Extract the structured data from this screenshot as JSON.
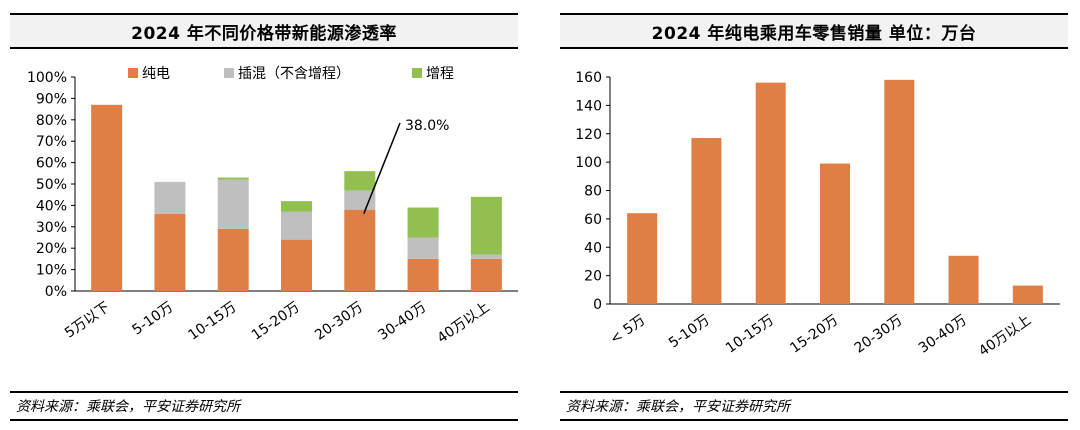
{
  "left": {
    "title": "2024 年不同价格带新能源渗透率",
    "source": "资料来源：乘联会，平安证券研究所",
    "chart_data": {
      "type": "bar",
      "stacked": true,
      "categories": [
        "5万以下",
        "5-10万",
        "10-15万",
        "15-20万",
        "20-30万",
        "30-40万",
        "40万以上"
      ],
      "series": [
        {
          "name": "纯电",
          "color": "#E07F45",
          "values": [
            87,
            36,
            29,
            24,
            38,
            15,
            15
          ]
        },
        {
          "name": "插混（不含增程）",
          "color": "#BFBFBF",
          "values": [
            0,
            15,
            23,
            13,
            9,
            10,
            2
          ]
        },
        {
          "name": "增程",
          "color": "#92C050",
          "values": [
            0,
            0,
            1,
            5,
            9,
            14,
            27
          ]
        }
      ],
      "yticks": [
        "0%",
        "10%",
        "20%",
        "30%",
        "40%",
        "50%",
        "60%",
        "70%",
        "80%",
        "90%",
        "100%"
      ],
      "ylim": [
        0,
        100
      ],
      "annotation": "38.0%",
      "legend_position": "top"
    }
  },
  "right": {
    "title": "2024 年纯电乘用车零售销量    单位：万台",
    "source": "资料来源：乘联会，平安证券研究所",
    "chart_data": {
      "type": "bar",
      "categories": [
        "< 5万",
        "5-10万",
        "10-15万",
        "15-20万",
        "20-30万",
        "30-40万",
        "40万以上"
      ],
      "values": [
        64,
        117,
        156,
        99,
        158,
        34,
        13
      ],
      "color": "#E07F45",
      "yticks": [
        "0",
        "20",
        "40",
        "60",
        "80",
        "100",
        "120",
        "140",
        "160"
      ],
      "ylim": [
        0,
        160
      ]
    }
  }
}
